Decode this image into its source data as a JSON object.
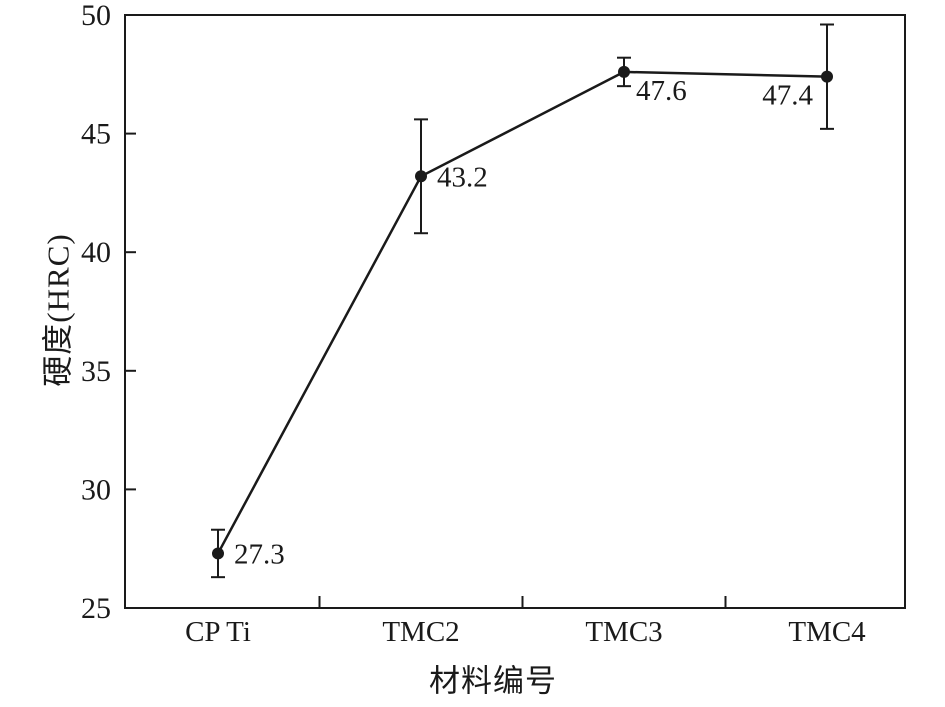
{
  "chart_data": {
    "type": "line",
    "categories": [
      "CP Ti",
      "TMC2",
      "TMC3",
      "TMC4"
    ],
    "values": [
      27.3,
      43.2,
      47.6,
      47.4
    ],
    "errors": [
      1.0,
      2.4,
      0.6,
      2.2
    ],
    "point_labels": [
      "27.3",
      "43.2",
      "47.6",
      "47.4"
    ],
    "xlabel": "材料编号",
    "ylabel": "硬度(HRC)",
    "ylim": [
      25,
      50
    ],
    "yticks": [
      25,
      30,
      35,
      40,
      45,
      50
    ],
    "grid": false,
    "legend": "none",
    "marker": "circle",
    "line_color": "#1a1a1a",
    "background_color": "#ffffff"
  }
}
